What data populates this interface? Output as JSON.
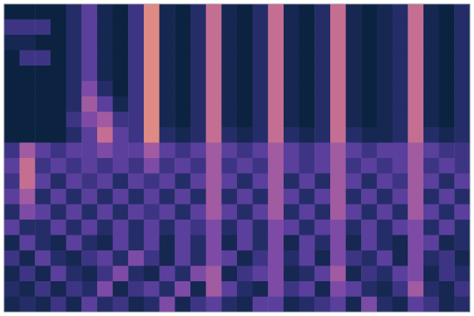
{
  "chart_data": {
    "type": "heatmap",
    "tick_labels": false,
    "zlim": [
      0,
      9
    ],
    "cells": [
      [
        0,
        0,
        0,
        0,
        2,
        4,
        1,
        0,
        3,
        8,
        1,
        0,
        2,
        7,
        1,
        0,
        2,
        7,
        1,
        0,
        2,
        7,
        1,
        0,
        1,
        2,
        7,
        1,
        0,
        2
      ],
      [
        3,
        3,
        3,
        0,
        2,
        4,
        1,
        0,
        3,
        8,
        1,
        0,
        2,
        7,
        1,
        0,
        2,
        7,
        1,
        0,
        2,
        7,
        1,
        0,
        1,
        2,
        7,
        1,
        0,
        2
      ],
      [
        1,
        1,
        0,
        0,
        2,
        4,
        1,
        0,
        3,
        8,
        1,
        0,
        2,
        7,
        1,
        0,
        2,
        7,
        1,
        0,
        2,
        7,
        1,
        0,
        1,
        2,
        7,
        1,
        0,
        2
      ],
      [
        0,
        3,
        3,
        0,
        2,
        4,
        1,
        0,
        3,
        8,
        1,
        0,
        2,
        7,
        1,
        0,
        2,
        7,
        1,
        0,
        2,
        7,
        1,
        0,
        1,
        2,
        7,
        1,
        0,
        2
      ],
      [
        0,
        0,
        0,
        0,
        2,
        4,
        1,
        0,
        3,
        8,
        1,
        0,
        2,
        7,
        1,
        0,
        2,
        7,
        1,
        0,
        2,
        7,
        1,
        0,
        1,
        2,
        7,
        1,
        0,
        2
      ],
      [
        0,
        0,
        0,
        0,
        2,
        5,
        2,
        0,
        3,
        8,
        1,
        0,
        2,
        7,
        1,
        0,
        2,
        7,
        1,
        0,
        2,
        7,
        1,
        0,
        1,
        2,
        7,
        1,
        0,
        2
      ],
      [
        0,
        0,
        0,
        0,
        2,
        6,
        4,
        1,
        3,
        8,
        1,
        0,
        2,
        7,
        1,
        0,
        2,
        7,
        1,
        0,
        2,
        7,
        1,
        0,
        1,
        2,
        7,
        1,
        0,
        2
      ],
      [
        0,
        0,
        0,
        0,
        3,
        5,
        6,
        3,
        3,
        8,
        1,
        0,
        2,
        7,
        1,
        0,
        2,
        7,
        1,
        0,
        2,
        7,
        1,
        0,
        1,
        2,
        7,
        1,
        0,
        2
      ],
      [
        0,
        0,
        0,
        0,
        2,
        4,
        7,
        4,
        3,
        8,
        2,
        1,
        2,
        7,
        2,
        1,
        2,
        7,
        2,
        1,
        2,
        7,
        2,
        1,
        1,
        2,
        7,
        2,
        1,
        2
      ],
      [
        3,
        6,
        4,
        3,
        4,
        4,
        5,
        4,
        4,
        6,
        4,
        3,
        4,
        6,
        4,
        3,
        4,
        6,
        4,
        3,
        4,
        6,
        4,
        3,
        4,
        4,
        6,
        4,
        3,
        3
      ],
      [
        4,
        7,
        3,
        4,
        3,
        4,
        3,
        4,
        3,
        5,
        3,
        4,
        3,
        6,
        3,
        4,
        3,
        6,
        4,
        3,
        4,
        6,
        3,
        4,
        3,
        4,
        6,
        3,
        4,
        3
      ],
      [
        3,
        7,
        4,
        2,
        4,
        3,
        4,
        2,
        4,
        3,
        4,
        2,
        4,
        6,
        4,
        2,
        4,
        6,
        2,
        4,
        2,
        6,
        4,
        2,
        4,
        3,
        6,
        4,
        2,
        4
      ],
      [
        4,
        6,
        2,
        4,
        2,
        4,
        2,
        4,
        2,
        4,
        2,
        4,
        2,
        6,
        2,
        4,
        2,
        6,
        4,
        2,
        4,
        6,
        2,
        4,
        2,
        4,
        6,
        2,
        4,
        2
      ],
      [
        2,
        5,
        4,
        2,
        4,
        2,
        4,
        2,
        4,
        3,
        4,
        2,
        4,
        6,
        4,
        2,
        4,
        6,
        2,
        4,
        2,
        6,
        4,
        2,
        4,
        2,
        6,
        4,
        2,
        4
      ],
      [
        4,
        2,
        2,
        4,
        2,
        4,
        2,
        4,
        2,
        4,
        2,
        4,
        3,
        5,
        2,
        4,
        2,
        5,
        4,
        2,
        4,
        5,
        2,
        4,
        2,
        4,
        5,
        2,
        4,
        2
      ],
      [
        1,
        4,
        2,
        1,
        4,
        2,
        1,
        4,
        2,
        4,
        1,
        4,
        2,
        5,
        1,
        4,
        2,
        5,
        1,
        4,
        2,
        5,
        1,
        4,
        2,
        1,
        5,
        4,
        1,
        2
      ],
      [
        3,
        1,
        4,
        2,
        1,
        3,
        4,
        2,
        5,
        3,
        1,
        4,
        2,
        5,
        4,
        1,
        3,
        5,
        2,
        4,
        1,
        5,
        3,
        2,
        4,
        1,
        5,
        2,
        3,
        1
      ],
      [
        1,
        3,
        1,
        4,
        2,
        1,
        3,
        5,
        2,
        1,
        4,
        2,
        5,
        6,
        1,
        3,
        4,
        5,
        1,
        2,
        4,
        6,
        1,
        3,
        2,
        4,
        5,
        1,
        3,
        2
      ],
      [
        2,
        1,
        3,
        1,
        3,
        2,
        5,
        1,
        3,
        4,
        2,
        5,
        1,
        6,
        4,
        2,
        1,
        5,
        3,
        4,
        1,
        5,
        4,
        2,
        1,
        3,
        6,
        2,
        1,
        3
      ],
      [
        1,
        2,
        1,
        3,
        1,
        4,
        2,
        3,
        1,
        2,
        5,
        1,
        3,
        4,
        2,
        1,
        4,
        4,
        1,
        2,
        3,
        4,
        1,
        5,
        2,
        1,
        4,
        3,
        1,
        2
      ]
    ]
  }
}
